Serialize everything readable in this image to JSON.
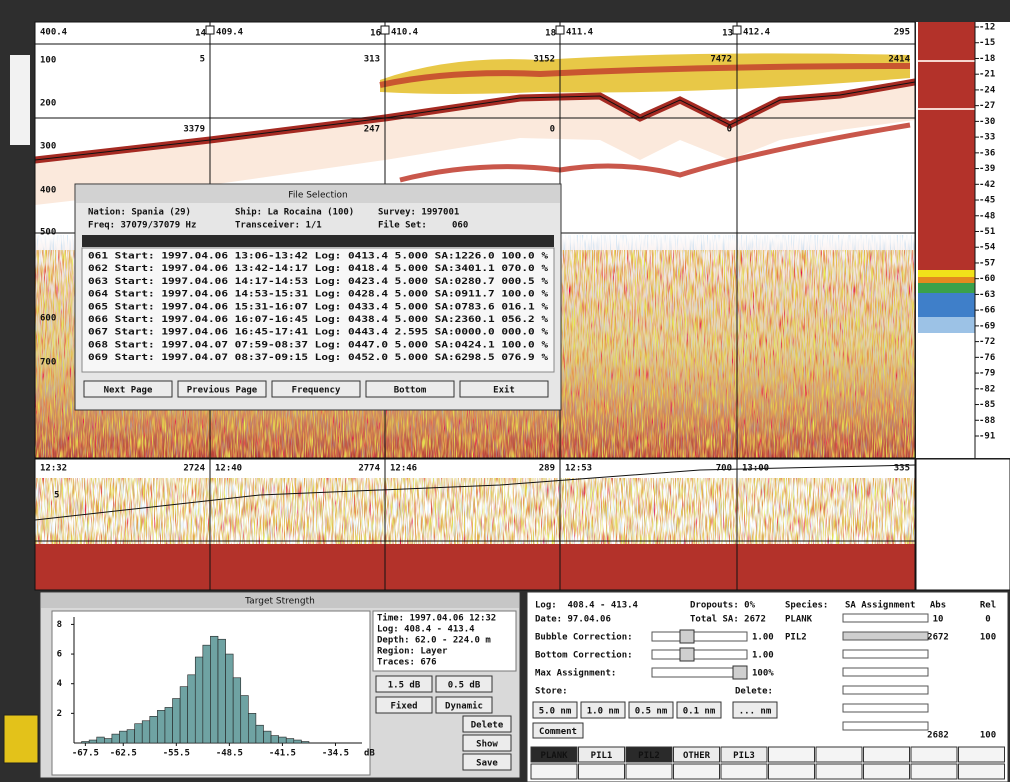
{
  "echogram": {
    "start_log": "400.4",
    "marker_ids": [
      "14",
      "16",
      "18",
      "13"
    ],
    "log_labels": [
      "409.4",
      "410.4",
      "411.4",
      "412.4"
    ],
    "end_value": "295",
    "layer_values": [
      "5",
      "313",
      "3152",
      "7472",
      "2414"
    ],
    "bottom_values": [
      "3379",
      "247",
      "0",
      "0"
    ],
    "depth_labels": [
      "100",
      "200",
      "300",
      "400",
      "500",
      "600",
      "700"
    ]
  },
  "color_scale": [
    "-12",
    "-15",
    "-18",
    "-21",
    "-24",
    "-27",
    "-30",
    "-33",
    "-36",
    "-39",
    "-42",
    "-45",
    "-48",
    "-51",
    "-54",
    "-57",
    "-60",
    "-63",
    "-66",
    "-69",
    "-72",
    "-76",
    "-79",
    "-82",
    "-85",
    "-88",
    "-91"
  ],
  "file_selection": {
    "title": "File Selection",
    "nation": "Nation: Spania (29)",
    "ship": "Ship: La Rocaina (100)",
    "survey": "Survey: 1997001",
    "freq": "Freq: 37079/37079 Hz",
    "transceiver": "Transceiver: 1/1",
    "file_set_label": "File Set:",
    "file_set": "060",
    "rows": [
      "061 Start: 1997.04.06 13:06-13:42 Log: 0413.4 5.000 SA:1226.0 100.0 %",
      "062 Start: 1997.04.06 13:42-14:17 Log: 0418.4 5.000 SA:3401.1 070.0 %",
      "063 Start: 1997.04.06 14:17-14:53 Log: 0423.4 5.000 SA:0280.7 000.5 %",
      "064 Start: 1997.04.06 14:53-15:31 Log: 0428.4 5.000 SA:0911.7 100.0 %",
      "065 Start: 1997.04.06 15:31-16:07 Log: 0433.4 5.000 SA:0783.6 016.1 %",
      "066 Start: 1997.04.06 16:07-16:45 Log: 0438.4 5.000 SA:2360.1 056.2 %",
      "067 Start: 1997.04.06 16:45-17:41 Log: 0443.4 2.595 SA:0000.0 000.0 %",
      "068 Start: 1997.04.07 07:59-08:37 Log: 0447.0 5.000 SA:0424.1 100.0 %",
      "069 Start: 1997.04.07 08:37-09:15 Log: 0452.0 5.000 SA:6298.5 076.9 %"
    ],
    "buttons": [
      "Next Page",
      "Previous Page",
      "Frequency",
      "Bottom",
      "Exit"
    ]
  },
  "time_strip": {
    "labels": [
      "12:32",
      "2724",
      "12:40",
      "2774",
      "12:46",
      "289",
      "12:53",
      "700",
      "13:00",
      "335"
    ],
    "depth_label": "5"
  },
  "chart_data": {
    "type": "histogram",
    "title": "Target Strength",
    "x_label": "dB",
    "color": "#6fa3a3",
    "bins": [
      -68,
      -67,
      -66,
      -65,
      -64,
      -63,
      -62,
      -61,
      -60,
      -59,
      -58,
      -57,
      -56,
      -55,
      -54,
      -53,
      -52,
      -51,
      -50,
      -49,
      -48,
      -47,
      -46,
      -45,
      -44,
      -43,
      -42,
      -41,
      -40,
      -39,
      -38
    ],
    "counts": [
      0.1,
      0.2,
      0.4,
      0.3,
      0.6,
      0.8,
      0.9,
      1.3,
      1.5,
      1.8,
      2.2,
      2.4,
      3.0,
      3.8,
      4.6,
      5.8,
      6.6,
      7.2,
      7.0,
      6.0,
      4.4,
      3.2,
      2.0,
      1.2,
      0.8,
      0.5,
      0.4,
      0.3,
      0.2,
      0.1
    ],
    "xlim": [
      -69,
      -31
    ],
    "xticks": [
      -67.5,
      -62.5,
      -55.5,
      -48.5,
      -41.5,
      -34.5
    ],
    "ylim": [
      0,
      8.5
    ],
    "yticks": [
      2,
      4,
      6,
      8
    ]
  },
  "target_strength_info": {
    "lines": [
      "Time: 1997.04.06 12:32",
      "Log: 408.4 - 413.4",
      "Depth: 62.0 - 224.0 m",
      "Region: Layer",
      "Traces: 676"
    ],
    "step_buttons": [
      "1.5 dB",
      "0.5 dB"
    ],
    "mode_buttons": [
      "Fixed",
      "Dynamic"
    ],
    "action_buttons": [
      "Delete",
      "Show",
      "Save"
    ]
  },
  "sa_panel": {
    "log": "Log:  408.4 - 413.4",
    "date": "Date: 97.04.06",
    "dropouts": "Dropouts: 0%",
    "total_sa": "Total SA: 2672",
    "settings": [
      {
        "label": "Bubble Correction:",
        "value": "1.00"
      },
      {
        "label": "Bottom Correction:",
        "value": "1.00"
      },
      {
        "label": "Max Assignment:",
        "value": "100%"
      }
    ],
    "store": "Store:",
    "delete": "Delete:",
    "store_buttons": [
      "5.0 nm",
      "1.0 nm",
      "0.5 nm",
      "0.1 nm"
    ],
    "delete_button": "... nm",
    "comment": "Comment",
    "species_header": [
      "Species:",
      "SA Assignment",
      "Abs",
      "Rel"
    ],
    "species": [
      {
        "name": "PLANK",
        "abs": "10",
        "rel": "0"
      },
      {
        "name": "PIL2",
        "abs": "2672",
        "rel": "100"
      }
    ],
    "sum": {
      "abs": "2682",
      "rel": "100"
    },
    "tabs": [
      "PLANK",
      "PIL1",
      "PIL2",
      "OTHER",
      "PIL3"
    ]
  }
}
